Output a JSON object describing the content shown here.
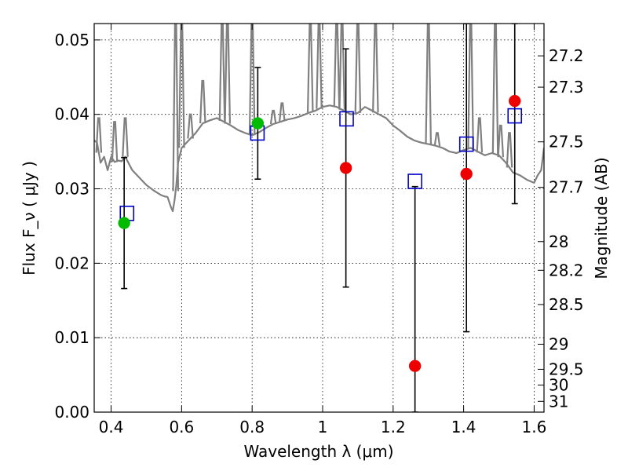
{
  "chart_data": {
    "type": "scatter",
    "xlabel": "Wavelength  λ (μm)",
    "ylabel": "Flux  F_ν  ( μJy )",
    "y2label": "Magnitude (AB)",
    "xlim": [
      0.352,
      1.628
    ],
    "ylim": [
      0.0,
      0.0522
    ],
    "grid": true,
    "x_ticks": [
      0.4,
      0.6,
      0.8,
      1.0,
      1.2,
      1.4,
      1.6
    ],
    "x_tick_labels": [
      "0.4",
      "0.6",
      "0.8",
      "1",
      "1.2",
      "1.4",
      "1.6"
    ],
    "y_ticks": [
      0.0,
      0.01,
      0.02,
      0.03,
      0.04,
      0.05
    ],
    "y_tick_labels": [
      "0.00",
      "0.01",
      "0.02",
      "0.03",
      "0.04",
      "0.05"
    ],
    "mag_ticks": [
      27.2,
      27.3,
      27.5,
      27.7,
      28,
      28.2,
      28.5,
      29,
      29.5,
      30,
      31
    ],
    "mag_tick_labels": [
      "27.2",
      "27.3",
      "27.5",
      "27.7",
      "28",
      "28.2",
      "28.5",
      "29",
      "29.5",
      "30",
      "31"
    ],
    "colors": {
      "model": "#808080",
      "model_points": "#0000cc",
      "detected": "#00bb00",
      "upper": "#ee0000",
      "errorbar": "#000000"
    },
    "model_spectrum": {
      "x": [
        0.352,
        0.36,
        0.37,
        0.38,
        0.39,
        0.4,
        0.41,
        0.42,
        0.43,
        0.44,
        0.45,
        0.46,
        0.48,
        0.5,
        0.52,
        0.54,
        0.55,
        0.56,
        0.57,
        0.575,
        0.58,
        0.585,
        0.59,
        0.6,
        0.62,
        0.64,
        0.66,
        0.68,
        0.7,
        0.72,
        0.74,
        0.76,
        0.78,
        0.8,
        0.82,
        0.84,
        0.86,
        0.88,
        0.9,
        0.92,
        0.94,
        0.96,
        0.98,
        1.0,
        1.02,
        1.04,
        1.06,
        1.08,
        1.1,
        1.12,
        1.14,
        1.16,
        1.18,
        1.2,
        1.22,
        1.24,
        1.26,
        1.28,
        1.3,
        1.32,
        1.34,
        1.36,
        1.38,
        1.4,
        1.42,
        1.44,
        1.46,
        1.48,
        1.5,
        1.52,
        1.54,
        1.56,
        1.58,
        1.6,
        1.61,
        1.62,
        1.628
      ],
      "y": [
        0.0365,
        0.0362,
        0.0335,
        0.0343,
        0.0325,
        0.0343,
        0.0336,
        0.0338,
        0.0337,
        0.0343,
        0.0334,
        0.0325,
        0.0315,
        0.0305,
        0.0298,
        0.0292,
        0.029,
        0.0289,
        0.0275,
        0.027,
        0.0285,
        0.0305,
        0.0335,
        0.0355,
        0.0365,
        0.0375,
        0.0388,
        0.0392,
        0.0395,
        0.039,
        0.0385,
        0.0379,
        0.0375,
        0.0372,
        0.0376,
        0.0382,
        0.0387,
        0.039,
        0.0393,
        0.0395,
        0.0398,
        0.0402,
        0.0405,
        0.041,
        0.0412,
        0.041,
        0.0405,
        0.04,
        0.0402,
        0.041,
        0.0405,
        0.04,
        0.0395,
        0.0385,
        0.0378,
        0.037,
        0.0365,
        0.0362,
        0.036,
        0.0358,
        0.0355,
        0.035,
        0.0348,
        0.0352,
        0.0355,
        0.035,
        0.0345,
        0.0348,
        0.0345,
        0.0335,
        0.0322,
        0.0318,
        0.0312,
        0.0308,
        0.0318,
        0.0325,
        0.0355
      ]
    },
    "model_spikes": [
      {
        "x": 0.365,
        "top": 0.0395
      },
      {
        "x": 0.41,
        "top": 0.039
      },
      {
        "x": 0.44,
        "top": 0.0395
      },
      {
        "x": 0.583,
        "top": 0.0522
      },
      {
        "x": 0.6,
        "top": 0.0522
      },
      {
        "x": 0.625,
        "top": 0.04
      },
      {
        "x": 0.66,
        "top": 0.0445
      },
      {
        "x": 0.715,
        "top": 0.0522
      },
      {
        "x": 0.73,
        "top": 0.0522
      },
      {
        "x": 0.8,
        "top": 0.0522
      },
      {
        "x": 0.86,
        "top": 0.0405
      },
      {
        "x": 0.885,
        "top": 0.0415
      },
      {
        "x": 0.965,
        "top": 0.0522
      },
      {
        "x": 0.99,
        "top": 0.0522
      },
      {
        "x": 1.04,
        "top": 0.0522
      },
      {
        "x": 1.055,
        "top": 0.0522
      },
      {
        "x": 1.1,
        "top": 0.0522
      },
      {
        "x": 1.15,
        "top": 0.0522
      },
      {
        "x": 1.3,
        "top": 0.0522
      },
      {
        "x": 1.325,
        "top": 0.0375
      },
      {
        "x": 1.42,
        "top": 0.0522
      },
      {
        "x": 1.445,
        "top": 0.0395
      },
      {
        "x": 1.49,
        "top": 0.0522
      },
      {
        "x": 1.505,
        "top": 0.0385
      },
      {
        "x": 1.53,
        "top": 0.0375
      }
    ],
    "model_points": {
      "name": "",
      "x": [
        0.445,
        0.815,
        1.068,
        1.262,
        1.408,
        1.545
      ],
      "y": [
        0.0267,
        0.0375,
        0.0394,
        0.031,
        0.036,
        0.0398
      ]
    },
    "observed": [
      {
        "x": 0.437,
        "y": 0.0254,
        "err_low": 0.0166,
        "err_high": 0.0342,
        "kind": "detected"
      },
      {
        "x": 0.816,
        "y": 0.0388,
        "err_low": 0.0313,
        "err_high": 0.0463,
        "kind": "detected"
      },
      {
        "x": 1.066,
        "y": 0.0328,
        "err_low": 0.0168,
        "err_high": 0.0488,
        "kind": "upper"
      },
      {
        "x": 1.262,
        "y": 0.0062,
        "err_low": 0.0,
        "err_high": 0.0303,
        "kind": "upper"
      },
      {
        "x": 1.408,
        "y": 0.032,
        "err_low": 0.0108,
        "err_high": 0.0522,
        "kind": "upper"
      },
      {
        "x": 1.545,
        "y": 0.0418,
        "err_low": 0.028,
        "err_high": 0.0522,
        "kind": "upper"
      }
    ]
  }
}
